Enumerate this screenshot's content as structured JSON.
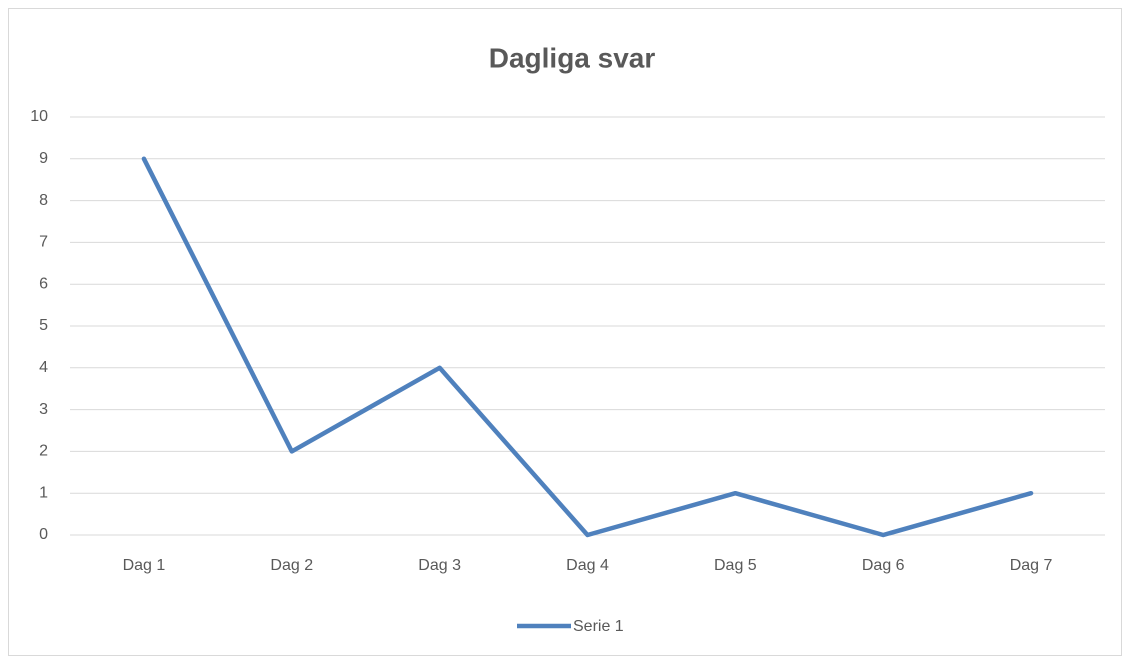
{
  "chart_data": {
    "type": "line",
    "title": "Dagliga svar",
    "categories": [
      "Dag 1",
      "Dag 2",
      "Dag 3",
      "Dag 4",
      "Dag 5",
      "Dag 6",
      "Dag 7"
    ],
    "series": [
      {
        "name": "Serie 1",
        "color": "#4f81bd",
        "values": [
          9,
          2,
          4,
          0,
          1,
          0,
          1
        ]
      }
    ],
    "ylim": [
      0,
      10
    ],
    "yticks": [
      0,
      1,
      2,
      3,
      4,
      5,
      6,
      7,
      8,
      9,
      10
    ],
    "grid": true,
    "legend": "bottom"
  }
}
